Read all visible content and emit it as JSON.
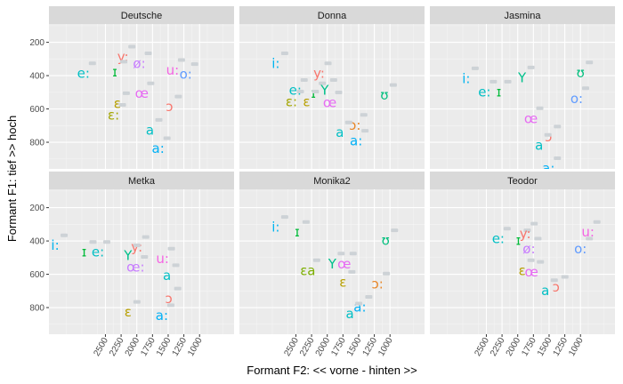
{
  "chart_data": {
    "type": "scatter",
    "xlabel": "Formant F2: << vorne - hinten >>",
    "ylabel": "Formant F1: tief >> hoch",
    "x_reversed": true,
    "y_reversed": true,
    "xlim": [
      3400,
      450
    ],
    "ylim": [
      960,
      90
    ],
    "xticks": [
      2500,
      2250,
      2000,
      1750,
      1500,
      1250,
      1000
    ],
    "xtick_labels": [
      "2500",
      "2250",
      "2000",
      "1750",
      "1500",
      "1250",
      "1000"
    ],
    "yticks": [
      200,
      400,
      600,
      800
    ],
    "ytick_labels": [
      "200",
      "400",
      "600",
      "800"
    ],
    "grid": true,
    "legend": "none",
    "colors": {
      "i_long": "#00B4EF",
      "e_long": "#00BFC4",
      "I": "#00BA38",
      "Y": "#00C08B",
      "y_long": "#F8766D",
      "oe_long": "#C77CFF",
      "u_long": "#F564E3",
      "o_long": "#619CFF",
      "U": "#00BF7D",
      "e_open": "#B79F00",
      "e_open_long": "#A3A500",
      "a": "#00BFC4",
      "a_long": "#00B0F6",
      "oe": "#E76BF3",
      "o_open": "#F8766D",
      "o_open_long": "#E88526",
      "ea": "#7CAE00"
    },
    "panels": [
      {
        "name": "Deutsche",
        "points": [
          {
            "label": "e:",
            "x": 2850,
            "y": 390,
            "key": "e_long"
          },
          {
            "label": "y:",
            "x": 2220,
            "y": 290,
            "key": "y_long"
          },
          {
            "label": "ɪ",
            "x": 2350,
            "y": 380,
            "key": "I"
          },
          {
            "label": "ø:",
            "x": 1960,
            "y": 330,
            "key": "oe_long"
          },
          {
            "label": "u:",
            "x": 1430,
            "y": 370,
            "key": "u_long"
          },
          {
            "label": "o:",
            "x": 1220,
            "y": 395,
            "key": "o_long"
          },
          {
            "label": "œ",
            "x": 1920,
            "y": 510,
            "key": "oe"
          },
          {
            "label": "ɛ",
            "x": 2310,
            "y": 570,
            "key": "e_open"
          },
          {
            "label": "ɔ",
            "x": 1480,
            "y": 590,
            "key": "o_open"
          },
          {
            "label": "ɛ:",
            "x": 2370,
            "y": 640,
            "key": "e_open_long"
          },
          {
            "label": "a",
            "x": 1790,
            "y": 730,
            "key": "a"
          },
          {
            "label": "a:",
            "x": 1660,
            "y": 840,
            "key": "a_long"
          }
        ]
      },
      {
        "name": "Donna",
        "points": [
          {
            "label": "i:",
            "x": 2820,
            "y": 330,
            "key": "i_long"
          },
          {
            "label": "y:",
            "x": 2130,
            "y": 390,
            "key": "y_long"
          },
          {
            "label": "e:",
            "x": 2510,
            "y": 490,
            "key": "e_long"
          },
          {
            "label": "ɪ",
            "x": 2220,
            "y": 510,
            "key": "I"
          },
          {
            "label": "Y",
            "x": 2040,
            "y": 490,
            "key": "Y"
          },
          {
            "label": "ʊ",
            "x": 1090,
            "y": 520,
            "key": "U"
          },
          {
            "label": "ɛ:",
            "x": 2570,
            "y": 560,
            "key": "e_open_long"
          },
          {
            "label": "ɛ",
            "x": 2330,
            "y": 560,
            "key": "e_open"
          },
          {
            "label": "œ",
            "x": 1960,
            "y": 565,
            "key": "oe"
          },
          {
            "label": "ɔ:",
            "x": 1560,
            "y": 700,
            "key": "o_open_long"
          },
          {
            "label": "a",
            "x": 1800,
            "y": 745,
            "key": "a"
          },
          {
            "label": "a:",
            "x": 1540,
            "y": 795,
            "key": "a_long"
          }
        ]
      },
      {
        "name": "Jasmina",
        "points": [
          {
            "label": "i:",
            "x": 2820,
            "y": 420,
            "key": "i_long"
          },
          {
            "label": "e:",
            "x": 2530,
            "y": 500,
            "key": "e_long"
          },
          {
            "label": "ɪ",
            "x": 2300,
            "y": 500,
            "key": "I"
          },
          {
            "label": "Y",
            "x": 1930,
            "y": 415,
            "key": "Y"
          },
          {
            "label": "ʊ",
            "x": 1000,
            "y": 385,
            "key": "U"
          },
          {
            "label": "o:",
            "x": 1060,
            "y": 540,
            "key": "o_long"
          },
          {
            "label": "œ",
            "x": 1790,
            "y": 660,
            "key": "oe"
          },
          {
            "label": "ɔ",
            "x": 1510,
            "y": 770,
            "key": "o_open"
          },
          {
            "label": "a",
            "x": 1660,
            "y": 820,
            "key": "a"
          },
          {
            "label": "a:",
            "x": 1510,
            "y": 960,
            "key": "a_long"
          }
        ]
      },
      {
        "name": "Metka",
        "points": [
          {
            "label": "i:",
            "x": 3300,
            "y": 430,
            "key": "i_long"
          },
          {
            "label": "ɪ",
            "x": 2840,
            "y": 470,
            "key": "I"
          },
          {
            "label": "e:",
            "x": 2620,
            "y": 470,
            "key": "e_long"
          },
          {
            "label": "y:",
            "x": 2000,
            "y": 440,
            "key": "y_long"
          },
          {
            "label": "Y",
            "x": 2140,
            "y": 490,
            "key": "Y"
          },
          {
            "label": "u:",
            "x": 1590,
            "y": 510,
            "key": "u_long"
          },
          {
            "label": "œ:",
            "x": 2020,
            "y": 560,
            "key": "oe_long"
          },
          {
            "label": "a",
            "x": 1520,
            "y": 610,
            "key": "a"
          },
          {
            "label": "ɔ",
            "x": 1490,
            "y": 750,
            "key": "o_open"
          },
          {
            "label": "ɛ",
            "x": 2140,
            "y": 830,
            "key": "e_open"
          },
          {
            "label": "a:",
            "x": 1600,
            "y": 850,
            "key": "a_long"
          }
        ]
      },
      {
        "name": "Monika2",
        "points": [
          {
            "label": "i:",
            "x": 2820,
            "y": 320,
            "key": "i_long"
          },
          {
            "label": "ɪ",
            "x": 2480,
            "y": 350,
            "key": "I"
          },
          {
            "label": "ʊ",
            "x": 1070,
            "y": 400,
            "key": "U"
          },
          {
            "label": "Y",
            "x": 1920,
            "y": 540,
            "key": "Y"
          },
          {
            "label": "œ",
            "x": 1730,
            "y": 540,
            "key": "oe"
          },
          {
            "label": "ɛa",
            "x": 2310,
            "y": 580,
            "key": "ea"
          },
          {
            "label": "ɛ",
            "x": 1750,
            "y": 650,
            "key": "e_open"
          },
          {
            "label": "ɔ:",
            "x": 1200,
            "y": 660,
            "key": "o_open_long"
          },
          {
            "label": "a:",
            "x": 1480,
            "y": 800,
            "key": "a_long"
          },
          {
            "label": "a",
            "x": 1640,
            "y": 840,
            "key": "a"
          }
        ]
      },
      {
        "name": "Teodor",
        "points": [
          {
            "label": "e:",
            "x": 2310,
            "y": 390,
            "key": "e_long"
          },
          {
            "label": "ɪ",
            "x": 1990,
            "y": 400,
            "key": "I"
          },
          {
            "label": "y:",
            "x": 1880,
            "y": 360,
            "key": "y_long"
          },
          {
            "label": "u:",
            "x": 880,
            "y": 350,
            "key": "u_long"
          },
          {
            "label": "o:",
            "x": 1000,
            "y": 450,
            "key": "o_long"
          },
          {
            "label": "ø:",
            "x": 1820,
            "y": 450,
            "key": "oe_long"
          },
          {
            "label": "ɛ",
            "x": 1930,
            "y": 580,
            "key": "e_open"
          },
          {
            "label": "œ",
            "x": 1780,
            "y": 590,
            "key": "oe"
          },
          {
            "label": "a",
            "x": 1560,
            "y": 700,
            "key": "a"
          },
          {
            "label": "ɔ",
            "x": 1390,
            "y": 680,
            "key": "o_open"
          }
        ]
      }
    ]
  }
}
